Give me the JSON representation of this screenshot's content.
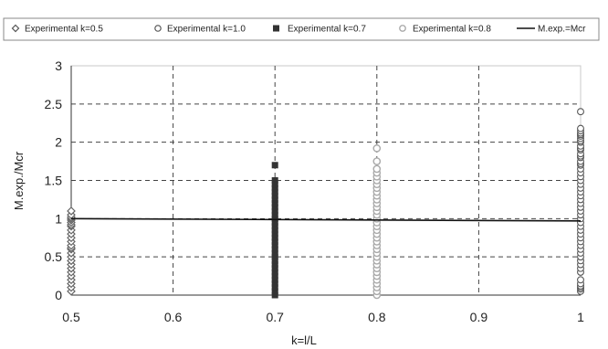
{
  "chart_data": {
    "type": "scatter",
    "xlabel": "k=l/L",
    "ylabel": "M.exp./Mcr",
    "xlim": [
      0.5,
      1.0
    ],
    "ylim": [
      0,
      3
    ],
    "x_ticks": [
      "0.5",
      "0.6",
      "0.7",
      "0.8",
      "0.9",
      "1"
    ],
    "y_ticks": [
      "0",
      "0.5",
      "1",
      "1.5",
      "2",
      "2.5",
      "3"
    ],
    "grid": "dashed",
    "legend_position": "top",
    "series": [
      {
        "name": "Experimental k=0.5",
        "marker": "diamond",
        "color": "#666666",
        "x": [
          0.5,
          0.5,
          0.5,
          0.5,
          0.5,
          0.5,
          0.5,
          0.5,
          0.5,
          0.5,
          0.5,
          0.5,
          0.5,
          0.5,
          0.5,
          0.5,
          0.5,
          0.5,
          0.5,
          0.5,
          0.5,
          0.5,
          0.5,
          0.5,
          0.5,
          0.5
        ],
        "y": [
          0.05,
          0.1,
          0.15,
          0.2,
          0.25,
          0.3,
          0.35,
          0.4,
          0.45,
          0.5,
          0.55,
          0.6,
          0.62,
          0.65,
          0.7,
          0.75,
          0.8,
          0.85,
          0.9,
          0.92,
          0.95,
          0.98,
          1.0,
          1.02,
          1.05,
          1.1
        ]
      },
      {
        "name": "Experimental k=1.0",
        "marker": "circle-open",
        "color": "#555555",
        "x": [
          1,
          1,
          1,
          1,
          1,
          1,
          1,
          1,
          1,
          1,
          1,
          1,
          1,
          1,
          1,
          1,
          1,
          1,
          1,
          1,
          1,
          1,
          1,
          1,
          1,
          1,
          1,
          1,
          1,
          1,
          1,
          1,
          1,
          1,
          1,
          1,
          1,
          1,
          1,
          1,
          1,
          1,
          1,
          1,
          1,
          1,
          1,
          1,
          1,
          1,
          1,
          1
        ],
        "y": [
          0.05,
          0.08,
          0.1,
          0.12,
          0.15,
          0.3,
          0.35,
          0.4,
          0.45,
          0.5,
          0.55,
          0.6,
          0.65,
          0.7,
          0.75,
          0.8,
          0.85,
          0.9,
          0.95,
          1.0,
          1.05,
          1.1,
          1.15,
          1.2,
          1.25,
          1.3,
          1.35,
          1.4,
          1.45,
          1.5,
          1.55,
          1.6,
          1.65,
          1.7,
          1.72,
          1.75,
          1.8,
          1.82,
          1.85,
          1.9,
          1.92,
          1.95,
          2.0,
          2.02,
          2.05,
          2.08,
          2.1,
          2.12,
          2.15,
          2.18,
          2.4,
          0.2
        ]
      },
      {
        "name": "Experimental k=0.7",
        "marker": "square",
        "color": "#333333",
        "x": [
          0.7,
          0.7,
          0.7,
          0.7,
          0.7,
          0.7,
          0.7,
          0.7,
          0.7,
          0.7,
          0.7,
          0.7,
          0.7,
          0.7,
          0.7,
          0.7,
          0.7,
          0.7,
          0.7,
          0.7,
          0.7,
          0.7,
          0.7,
          0.7,
          0.7,
          0.7,
          0.7,
          0.7,
          0.7,
          0.7,
          0.7,
          0.7
        ],
        "y": [
          0.0,
          0.05,
          0.1,
          0.15,
          0.2,
          0.25,
          0.3,
          0.35,
          0.4,
          0.45,
          0.5,
          0.55,
          0.6,
          0.65,
          0.7,
          0.75,
          0.8,
          0.85,
          0.9,
          0.95,
          1.0,
          1.05,
          1.1,
          1.15,
          1.2,
          1.25,
          1.3,
          1.35,
          1.4,
          1.45,
          1.5,
          1.7
        ]
      },
      {
        "name": "Experimental k=0.8",
        "marker": "circle-gray",
        "color": "#aaaaaa",
        "x": [
          0.8,
          0.8,
          0.8,
          0.8,
          0.8,
          0.8,
          0.8,
          0.8,
          0.8,
          0.8,
          0.8,
          0.8,
          0.8,
          0.8,
          0.8,
          0.8,
          0.8,
          0.8,
          0.8,
          0.8,
          0.8,
          0.8,
          0.8,
          0.8,
          0.8,
          0.8,
          0.8,
          0.8,
          0.8,
          0.8,
          0.8,
          0.8,
          0.8,
          0.8,
          0.8,
          0.8
        ],
        "y": [
          0.0,
          0.05,
          0.1,
          0.15,
          0.2,
          0.25,
          0.3,
          0.35,
          0.4,
          0.45,
          0.5,
          0.55,
          0.6,
          0.65,
          0.7,
          0.75,
          0.8,
          0.85,
          0.9,
          0.95,
          1.0,
          1.05,
          1.1,
          1.15,
          1.2,
          1.25,
          1.3,
          1.35,
          1.4,
          1.45,
          1.5,
          1.55,
          1.6,
          1.65,
          1.75,
          1.92
        ]
      },
      {
        "name": "M.exp.=Mcr",
        "marker": "line",
        "color": "#111111",
        "x": [
          0.5,
          1.0
        ],
        "y": [
          1.0,
          0.97
        ]
      }
    ]
  }
}
